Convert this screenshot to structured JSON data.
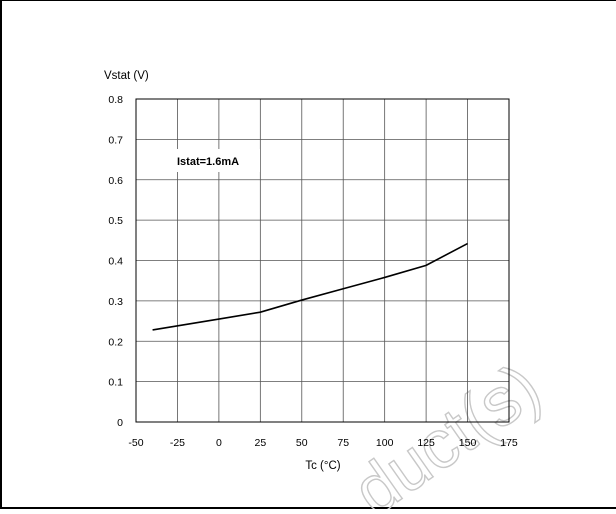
{
  "chart_data": {
    "type": "line",
    "title": "",
    "xlabel": "Tc (°C)",
    "ylabel": "Vstat (V)",
    "xlim": [
      -50,
      175
    ],
    "ylim": [
      0,
      0.8
    ],
    "x_ticks": [
      -50,
      -25,
      0,
      25,
      50,
      75,
      100,
      125,
      150,
      175
    ],
    "y_ticks": [
      0,
      0.1,
      0.2,
      0.3,
      0.4,
      0.5,
      0.6,
      0.7,
      0.8
    ],
    "x_tick_labels": [
      "-50",
      "-25",
      "0",
      "25",
      "50",
      "75",
      "100",
      "125",
      "150",
      "175"
    ],
    "y_tick_labels": [
      "0",
      "0.1",
      "0.2",
      "0.3",
      "0.4",
      "0.5",
      "0.6",
      "0.7",
      "0.8"
    ],
    "grid": true,
    "annotation": "Istat=1.6mA",
    "series": [
      {
        "x": [
          -40,
          0,
          25,
          50,
          75,
          100,
          125,
          150
        ],
        "y": [
          0.228,
          0.255,
          0.272,
          0.302,
          0.33,
          0.358,
          0.388,
          0.442
        ],
        "color": "#000000"
      }
    ],
    "watermark": "duct(s)"
  }
}
